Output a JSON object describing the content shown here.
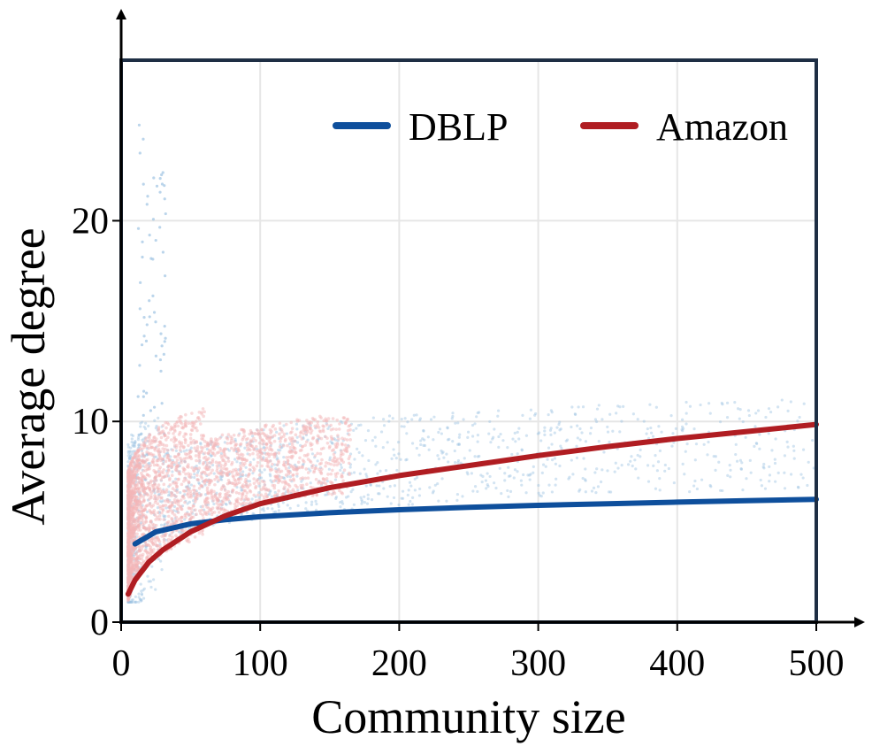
{
  "chart_data": {
    "type": "scatter",
    "xlabel": "Community size",
    "ylabel": "Average degree",
    "xlim": [
      0,
      500
    ],
    "ylim": [
      0,
      28
    ],
    "x_ticks": [
      "0",
      "100",
      "200",
      "300",
      "400",
      "500"
    ],
    "y_ticks": [
      "0",
      "10",
      "20"
    ],
    "x_tick_values": [
      0,
      100,
      200,
      300,
      400,
      500
    ],
    "y_tick_values": [
      0,
      10,
      20
    ],
    "grid": true,
    "legend_position": "top-right",
    "series": [
      {
        "name": "DBLP",
        "color": "#0e4f9c",
        "scatter_color": "#9ec3e2",
        "trend_x": [
          10,
          25,
          50,
          75,
          100,
          150,
          200,
          250,
          300,
          350,
          400,
          450,
          500
        ],
        "trend_y": [
          3.9,
          4.5,
          4.9,
          5.1,
          5.25,
          5.45,
          5.6,
          5.72,
          5.82,
          5.9,
          5.98,
          6.05,
          6.12
        ],
        "scatter_summary": {
          "x_range": [
            5,
            500
          ],
          "y_typical": [
            2,
            9
          ],
          "y_peak": 25
        }
      },
      {
        "name": "Amazon",
        "color": "#b01d22",
        "scatter_color": "#f4b6b8",
        "trend_x": [
          5,
          10,
          20,
          30,
          50,
          75,
          100,
          150,
          200,
          250,
          300,
          350,
          400,
          450,
          500
        ],
        "trend_y": [
          1.4,
          2.1,
          3.0,
          3.6,
          4.5,
          5.3,
          5.9,
          6.7,
          7.3,
          7.8,
          8.3,
          8.75,
          9.15,
          9.5,
          9.85
        ],
        "scatter_summary": {
          "x_range": [
            5,
            100
          ],
          "y_typical": [
            1,
            8
          ]
        }
      }
    ]
  }
}
